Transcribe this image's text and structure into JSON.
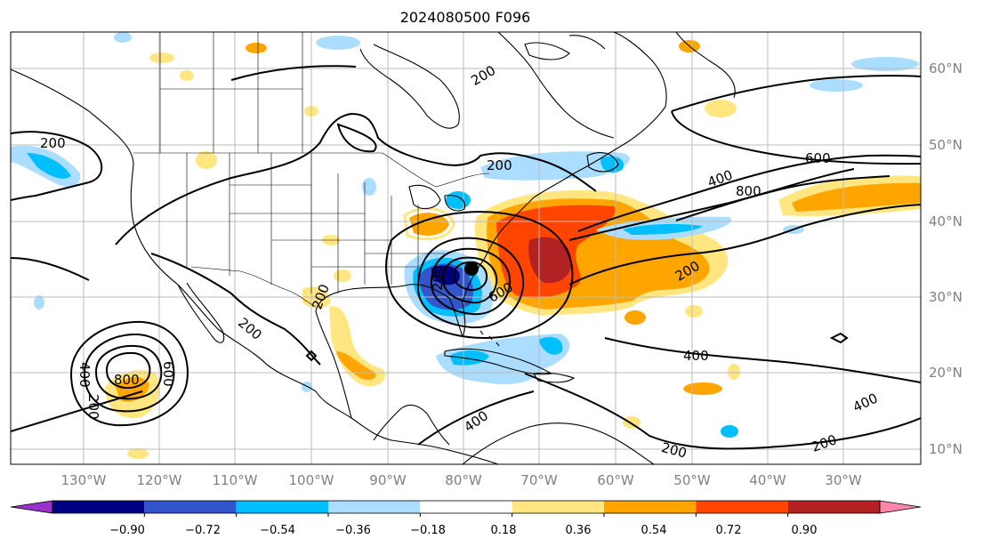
{
  "title": "2024080500 F096",
  "latitude_labels": [
    "60°N",
    "50°N",
    "40°N",
    "30°N",
    "20°N",
    "10°N"
  ],
  "longitude_labels": [
    "130°W",
    "120°W",
    "110°W",
    "100°W",
    "90°W",
    "80°W",
    "70°W",
    "60°W",
    "50°W",
    "40°W",
    "30°W"
  ],
  "contour_labels": [
    "200",
    "200",
    "200",
    "400",
    "600",
    "800",
    "200",
    "200",
    "600",
    "200",
    "200",
    "400",
    "400",
    "400",
    "200",
    "200",
    "400",
    "800",
    "600",
    "200"
  ],
  "colorbar": {
    "ticks": [
      "−0.90",
      "−0.72",
      "−0.54",
      "−0.36",
      "−0.18",
      "0.18",
      "0.36",
      "0.54",
      "0.72",
      "0.90"
    ],
    "colors": [
      "#9933cc",
      "#000080",
      "#3355cc",
      "#00bfff",
      "#aaddff",
      "#ffffff",
      "#ffe680",
      "#ffa500",
      "#ff4500",
      "#b22222",
      "#ff88aa"
    ]
  }
}
